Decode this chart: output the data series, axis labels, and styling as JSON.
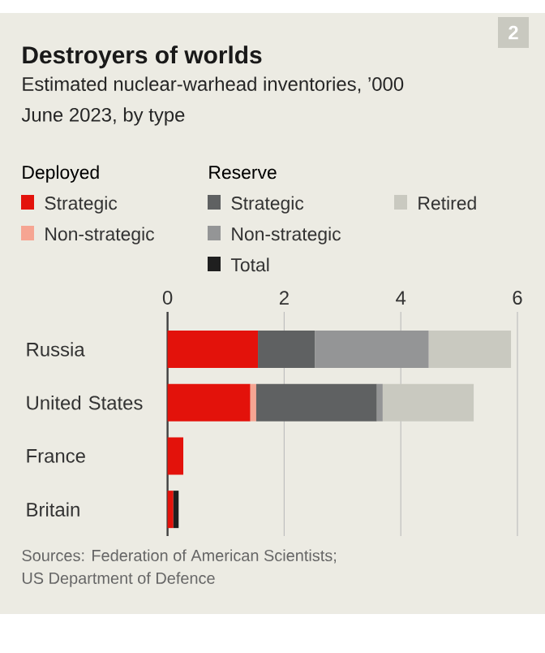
{
  "chart_data": {
    "type": "bar",
    "orientation": "horizontal",
    "stacked": true,
    "title": "Destroyers of worlds",
    "subtitle": "Estimated nuclear-warhead inventories, ’000\nJune 2023, by type",
    "categories": [
      "Russia",
      "United States",
      "France",
      "Britain"
    ],
    "series": [
      {
        "name": "Strategic",
        "color": "#e3120b",
        "values": [
          1.55,
          1.42,
          0.27,
          0.1
        ]
      },
      {
        "name": "Non-strategic",
        "color": "#f6a592",
        "values": [
          null,
          0.1,
          null,
          null
        ]
      },
      {
        "name": "Strategic",
        "color": "#5f6162",
        "values": [
          0.98,
          2.07,
          null,
          null
        ]
      },
      {
        "name": "Non-strategic",
        "color": "#949596",
        "values": [
          1.95,
          0.1,
          null,
          null
        ]
      },
      {
        "name": "Total",
        "color": "#1f1f1f",
        "values": [
          null,
          null,
          null,
          0.09
        ]
      },
      {
        "name": "Retired",
        "color": "#c9c9c0",
        "values": [
          1.41,
          1.56,
          null,
          null
        ]
      }
    ],
    "xlim": [
      0,
      6
    ],
    "xticks": [
      0,
      2,
      4,
      6
    ],
    "grid": "x",
    "legend": "top",
    "annotations": [
      "2",
      "Deployed",
      "Reserve",
      "Sources: Federation of American Scientists;\nUS Department of Defence"
    ]
  }
}
